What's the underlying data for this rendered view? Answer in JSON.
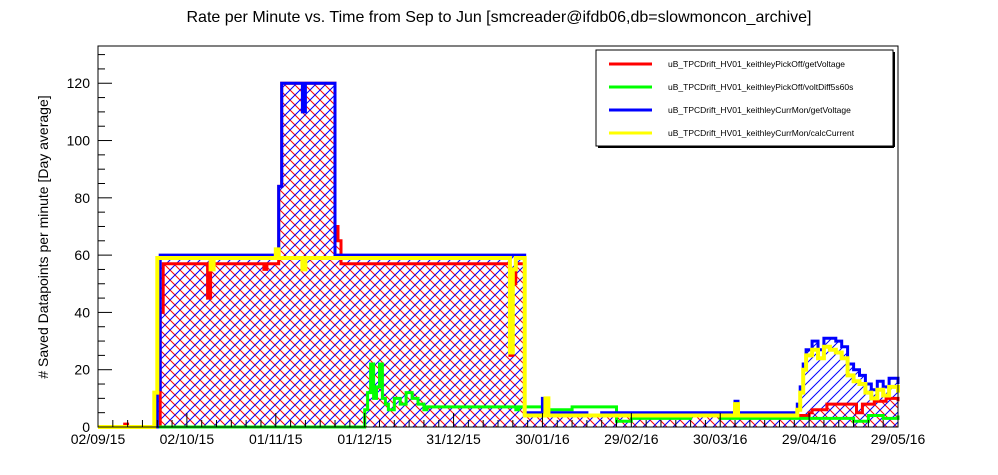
{
  "chart_data": {
    "type": "line",
    "title": "Rate per Minute vs. Time from Sep to Jun [smcreader@ifdb06,db=slowmoncon_archive]",
    "xlabel": "",
    "ylabel": "# Saved Datapoints per minute [Day average]",
    "x_ticks": [
      "02/09/15",
      "02/10/15",
      "01/11/15",
      "01/12/15",
      "31/12/15",
      "30/01/16",
      "29/02/16",
      "30/03/16",
      "29/04/16",
      "29/05/16"
    ],
    "y_ticks": [
      0,
      20,
      40,
      60,
      80,
      100,
      120
    ],
    "ylim": [
      0,
      133
    ],
    "legend_position": "top-right",
    "x_unit": "days since 02/09/15",
    "series": [
      {
        "name": "uB_TPCDrift_HV01_keithleyPickOff/getVoltage",
        "color": "#ff0000",
        "hatch": "down",
        "points": [
          [
            0,
            0
          ],
          [
            9,
            1
          ],
          [
            10,
            0
          ],
          [
            20,
            0
          ],
          [
            21,
            40
          ],
          [
            22,
            57
          ],
          [
            36,
            57
          ],
          [
            37,
            45
          ],
          [
            38,
            57
          ],
          [
            55,
            57
          ],
          [
            56,
            55
          ],
          [
            57,
            57
          ],
          [
            60,
            57
          ],
          [
            61,
            84
          ],
          [
            62,
            120
          ],
          [
            79,
            120
          ],
          [
            80,
            120
          ],
          [
            80,
            70
          ],
          [
            81,
            65
          ],
          [
            82,
            57
          ],
          [
            100,
            57
          ],
          [
            110,
            57
          ],
          [
            120,
            57
          ],
          [
            130,
            57
          ],
          [
            138,
            57
          ],
          [
            139,
            25
          ],
          [
            140,
            50
          ],
          [
            141,
            57
          ],
          [
            143,
            57
          ],
          [
            144,
            4
          ],
          [
            170,
            4
          ],
          [
            180,
            4
          ],
          [
            190,
            4
          ],
          [
            200,
            4
          ],
          [
            210,
            4
          ],
          [
            220,
            4
          ],
          [
            230,
            4
          ],
          [
            240,
            5
          ],
          [
            241,
            6
          ],
          [
            246,
            8
          ],
          [
            250,
            8
          ],
          [
            256,
            5
          ],
          [
            258,
            8
          ],
          [
            262,
            9
          ],
          [
            266,
            10
          ],
          [
            270,
            9
          ]
        ]
      },
      {
        "name": "uB_TPCDrift_HV01_keithleyPickOff/voltDiff5s60s",
        "color": "#00ff00",
        "hatch": "none",
        "points": [
          [
            0,
            0
          ],
          [
            85,
            0
          ],
          [
            89,
            0
          ],
          [
            90,
            6
          ],
          [
            91,
            12
          ],
          [
            92,
            22
          ],
          [
            93,
            10
          ],
          [
            94,
            14
          ],
          [
            95,
            22
          ],
          [
            96,
            10
          ],
          [
            97,
            8
          ],
          [
            98,
            6
          ],
          [
            100,
            10
          ],
          [
            102,
            8
          ],
          [
            104,
            12
          ],
          [
            106,
            10
          ],
          [
            108,
            8
          ],
          [
            110,
            6
          ],
          [
            111,
            7
          ],
          [
            140,
            7
          ],
          [
            141,
            6
          ],
          [
            142,
            7
          ],
          [
            143,
            7
          ],
          [
            144,
            7
          ],
          [
            150,
            7
          ],
          [
            152,
            6
          ],
          [
            160,
            7
          ],
          [
            170,
            7
          ],
          [
            175,
            2
          ],
          [
            180,
            3
          ],
          [
            190,
            3
          ],
          [
            200,
            4
          ],
          [
            210,
            3
          ],
          [
            220,
            3
          ],
          [
            230,
            3
          ],
          [
            240,
            3
          ],
          [
            250,
            3
          ],
          [
            255,
            2
          ],
          [
            260,
            4
          ],
          [
            265,
            3
          ],
          [
            270,
            4
          ]
        ]
      },
      {
        "name": "uB_TPCDrift_HV01_keithleyCurrMon/getVoltage",
        "color": "#0000ff",
        "hatch": "up",
        "points": [
          [
            0,
            0
          ],
          [
            19,
            0
          ],
          [
            20,
            13
          ],
          [
            21,
            60
          ],
          [
            60,
            60
          ],
          [
            61,
            84
          ],
          [
            62,
            120
          ],
          [
            68,
            120
          ],
          [
            69,
            110
          ],
          [
            70,
            120
          ],
          [
            79,
            120
          ],
          [
            80,
            60
          ],
          [
            143,
            60
          ],
          [
            144,
            5
          ],
          [
            148,
            5
          ],
          [
            150,
            10
          ],
          [
            151,
            5
          ],
          [
            160,
            5
          ],
          [
            165,
            4
          ],
          [
            170,
            5
          ],
          [
            180,
            5
          ],
          [
            190,
            5
          ],
          [
            200,
            5
          ],
          [
            210,
            5
          ],
          [
            215,
            9
          ],
          [
            216,
            5
          ],
          [
            220,
            5
          ],
          [
            230,
            5
          ],
          [
            236,
            8
          ],
          [
            237,
            14
          ],
          [
            238,
            22
          ],
          [
            239,
            27
          ],
          [
            241,
            30
          ],
          [
            243,
            27
          ],
          [
            245,
            31
          ],
          [
            247,
            31
          ],
          [
            249,
            30
          ],
          [
            251,
            28
          ],
          [
            253,
            22
          ],
          [
            255,
            20
          ],
          [
            257,
            18
          ],
          [
            259,
            15
          ],
          [
            261,
            13
          ],
          [
            263,
            16
          ],
          [
            265,
            14
          ],
          [
            267,
            17
          ],
          [
            270,
            15
          ]
        ]
      },
      {
        "name": "uB_TPCDrift_HV01_keithleyCurrMon/calcCurrent",
        "color": "#ffff00",
        "hatch": "none",
        "points": [
          [
            0,
            0
          ],
          [
            18,
            0
          ],
          [
            19,
            12
          ],
          [
            20,
            59
          ],
          [
            37,
            59
          ],
          [
            38,
            55
          ],
          [
            39,
            59
          ],
          [
            59,
            59
          ],
          [
            60,
            62
          ],
          [
            61,
            59
          ],
          [
            68,
            59
          ],
          [
            69,
            55
          ],
          [
            70,
            59
          ],
          [
            100,
            59
          ],
          [
            110,
            59
          ],
          [
            120,
            59
          ],
          [
            138,
            59
          ],
          [
            139,
            26
          ],
          [
            140,
            55
          ],
          [
            141,
            59
          ],
          [
            143,
            59
          ],
          [
            144,
            4
          ],
          [
            150,
            4
          ],
          [
            151,
            10
          ],
          [
            152,
            4
          ],
          [
            160,
            4
          ],
          [
            170,
            4
          ],
          [
            180,
            4
          ],
          [
            190,
            4
          ],
          [
            200,
            4
          ],
          [
            210,
            4
          ],
          [
            215,
            8
          ],
          [
            216,
            4
          ],
          [
            220,
            4
          ],
          [
            230,
            4
          ],
          [
            236,
            6
          ],
          [
            237,
            12
          ],
          [
            238,
            20
          ],
          [
            239,
            25
          ],
          [
            241,
            27
          ],
          [
            243,
            24
          ],
          [
            245,
            28
          ],
          [
            247,
            27
          ],
          [
            249,
            26
          ],
          [
            251,
            24
          ],
          [
            253,
            18
          ],
          [
            255,
            16
          ],
          [
            257,
            15
          ],
          [
            259,
            12
          ],
          [
            261,
            10
          ],
          [
            263,
            13
          ],
          [
            265,
            11
          ],
          [
            267,
            14
          ],
          [
            270,
            12
          ]
        ]
      }
    ]
  }
}
